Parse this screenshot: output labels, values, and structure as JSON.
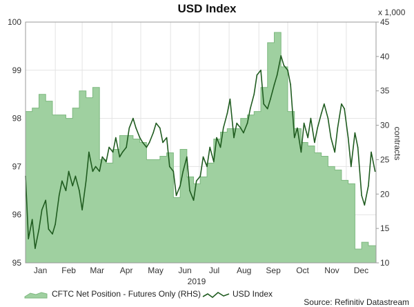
{
  "chart_data": {
    "type": "line",
    "title": "USD Index",
    "xlabel": "2019",
    "categories": [
      "Jan",
      "Feb",
      "Mar",
      "Apr",
      "May",
      "Jun",
      "Jul",
      "Aug",
      "Sep",
      "Oct",
      "Nov",
      "Dec"
    ],
    "y_left": {
      "ylim": [
        95,
        100
      ],
      "ticks": [
        95,
        96,
        97,
        98,
        99,
        100
      ]
    },
    "y_right": {
      "label": "contracts",
      "multiplier_label": "x 1,000",
      "ylim": [
        10,
        45
      ],
      "ticks": [
        10,
        15,
        20,
        25,
        30,
        35,
        40,
        45
      ]
    },
    "grid": true,
    "legend_position": "bottom",
    "series": [
      {
        "name": "CFTC Net Position - Futures Only (RHS)",
        "type": "area",
        "axis": "right",
        "color": "#9fd0a0",
        "edge_color": "#7db87f",
        "x": [
          "2019-01-01",
          "2019-01-08",
          "2019-01-15",
          "2019-01-22",
          "2019-01-29",
          "2019-02-05",
          "2019-02-12",
          "2019-02-19",
          "2019-02-26",
          "2019-03-05",
          "2019-03-12",
          "2019-03-19",
          "2019-03-26",
          "2019-04-02",
          "2019-04-09",
          "2019-04-16",
          "2019-04-23",
          "2019-04-30",
          "2019-05-07",
          "2019-05-14",
          "2019-05-21",
          "2019-05-28",
          "2019-06-04",
          "2019-06-11",
          "2019-06-18",
          "2019-06-25",
          "2019-07-02",
          "2019-07-09",
          "2019-07-16",
          "2019-07-23",
          "2019-07-30",
          "2019-08-06",
          "2019-08-13",
          "2019-08-20",
          "2019-08-27",
          "2019-09-03",
          "2019-09-10",
          "2019-09-17",
          "2019-09-24",
          "2019-10-01",
          "2019-10-08",
          "2019-10-15",
          "2019-10-22",
          "2019-10-29",
          "2019-11-05",
          "2019-11-12",
          "2019-11-19",
          "2019-11-26",
          "2019-12-03",
          "2019-12-10",
          "2019-12-17",
          "2019-12-24",
          "2019-12-31"
        ],
        "values": [
          32.0,
          32.5,
          34.5,
          33.5,
          31.5,
          31.5,
          31.0,
          32.5,
          35.0,
          34.0,
          35.5,
          25.0,
          24.5,
          26.5,
          28.5,
          28.5,
          28.0,
          27.5,
          25.0,
          25.0,
          25.5,
          26.0,
          19.5,
          26.5,
          22.5,
          21.5,
          22.5,
          24.5,
          28.0,
          29.0,
          29.5,
          29.5,
          31.0,
          31.5,
          32.0,
          35.5,
          42.0,
          43.5,
          38.5,
          32.0,
          29.5,
          27.5,
          27.0,
          26.0,
          25.5,
          24.0,
          23.5,
          22.0,
          21.5,
          12.0,
          13.0,
          12.5,
          12.5
        ]
      },
      {
        "name": "USD Index",
        "type": "line",
        "axis": "left",
        "color": "#1f5b1f",
        "x": [
          "2019-01-01",
          "2019-01-04",
          "2019-01-08",
          "2019-01-11",
          "2019-01-15",
          "2019-01-18",
          "2019-01-22",
          "2019-01-25",
          "2019-01-29",
          "2019-02-01",
          "2019-02-05",
          "2019-02-08",
          "2019-02-12",
          "2019-02-15",
          "2019-02-19",
          "2019-02-22",
          "2019-02-26",
          "2019-03-01",
          "2019-03-05",
          "2019-03-08",
          "2019-03-12",
          "2019-03-15",
          "2019-03-19",
          "2019-03-22",
          "2019-03-26",
          "2019-03-29",
          "2019-04-02",
          "2019-04-05",
          "2019-04-09",
          "2019-04-12",
          "2019-04-16",
          "2019-04-19",
          "2019-04-23",
          "2019-04-26",
          "2019-04-30",
          "2019-05-03",
          "2019-05-07",
          "2019-05-10",
          "2019-05-14",
          "2019-05-17",
          "2019-05-21",
          "2019-05-24",
          "2019-05-28",
          "2019-05-31",
          "2019-06-04",
          "2019-06-07",
          "2019-06-11",
          "2019-06-14",
          "2019-06-18",
          "2019-06-21",
          "2019-06-25",
          "2019-06-28",
          "2019-07-02",
          "2019-07-05",
          "2019-07-09",
          "2019-07-12",
          "2019-07-16",
          "2019-07-19",
          "2019-07-23",
          "2019-07-26",
          "2019-07-30",
          "2019-08-02",
          "2019-08-06",
          "2019-08-09",
          "2019-08-13",
          "2019-08-16",
          "2019-08-20",
          "2019-08-23",
          "2019-08-27",
          "2019-08-30",
          "2019-09-03",
          "2019-09-06",
          "2019-09-10",
          "2019-09-13",
          "2019-09-17",
          "2019-09-20",
          "2019-09-24",
          "2019-09-27",
          "2019-10-01",
          "2019-10-04",
          "2019-10-08",
          "2019-10-11",
          "2019-10-15",
          "2019-10-18",
          "2019-10-22",
          "2019-10-25",
          "2019-10-29",
          "2019-11-01",
          "2019-11-05",
          "2019-11-08",
          "2019-11-12",
          "2019-11-15",
          "2019-11-19",
          "2019-11-22",
          "2019-11-26",
          "2019-11-29",
          "2019-12-03",
          "2019-12-06",
          "2019-12-10",
          "2019-12-13",
          "2019-12-17",
          "2019-12-20",
          "2019-12-24",
          "2019-12-27",
          "2019-12-31"
        ],
        "values": [
          96.8,
          95.5,
          95.9,
          95.3,
          95.7,
          96.1,
          96.3,
          95.7,
          95.6,
          95.8,
          96.4,
          96.7,
          96.5,
          96.9,
          96.6,
          96.8,
          96.5,
          96.1,
          96.7,
          97.3,
          96.9,
          97.0,
          96.9,
          97.2,
          97.1,
          97.4,
          97.3,
          97.6,
          97.2,
          97.3,
          97.4,
          97.8,
          98.0,
          97.8,
          97.6,
          97.5,
          97.4,
          97.5,
          97.7,
          97.9,
          97.8,
          97.5,
          97.6,
          97.0,
          96.9,
          96.4,
          96.6,
          96.9,
          97.2,
          96.5,
          96.3,
          96.7,
          96.8,
          97.2,
          97.0,
          97.4,
          97.1,
          97.6,
          97.4,
          97.8,
          98.1,
          98.4,
          97.6,
          97.9,
          97.8,
          97.7,
          97.9,
          98.2,
          98.5,
          98.9,
          99.0,
          98.3,
          98.2,
          98.4,
          98.7,
          98.9,
          99.3,
          99.1,
          99.0,
          98.7,
          97.6,
          97.8,
          97.3,
          97.9,
          97.6,
          98.0,
          97.5,
          97.8,
          98.1,
          98.3,
          98.0,
          97.6,
          97.3,
          97.8,
          98.3,
          98.2,
          97.6,
          97.0,
          97.7,
          97.4,
          96.4,
          96.2,
          96.6,
          97.3,
          96.9
        ]
      }
    ],
    "source": "Source: Refinitiv Datastream"
  }
}
